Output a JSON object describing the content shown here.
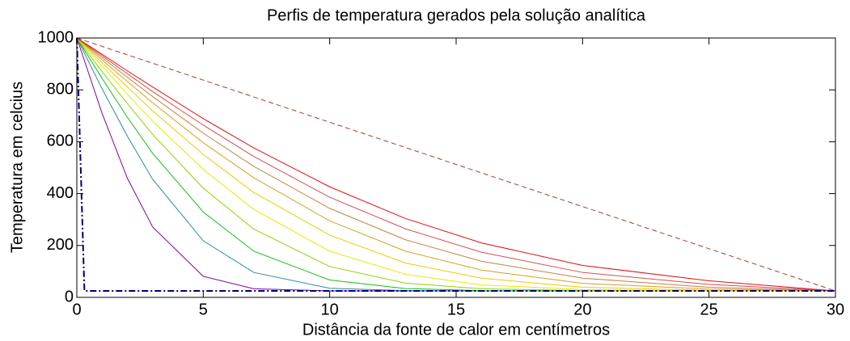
{
  "chart_data": {
    "type": "line",
    "title": "Perfis de temperatura gerados pela solução analítica",
    "xlabel": "Distância da fonte de calor em centímetros",
    "ylabel": "Temperatura em celcius",
    "xlim": [
      0,
      30
    ],
    "ylim": [
      0,
      1000
    ],
    "xticks": [
      0,
      5,
      10,
      15,
      20,
      25,
      30
    ],
    "yticks": [
      0,
      200,
      400,
      600,
      800,
      1000
    ],
    "grid": false,
    "x": [
      0,
      1,
      2,
      3,
      5,
      7,
      10,
      13,
      16,
      20,
      25,
      30
    ],
    "series": [
      {
        "color": "#8000a0",
        "values": [
          1000,
          709,
          459,
          271,
          81,
          33,
          25,
          25,
          25,
          25,
          25,
          25
        ]
      },
      {
        "color": "#2a8aa0",
        "values": [
          1000,
          804,
          621,
          455,
          218,
          96,
          35,
          26,
          25,
          25,
          25,
          25
        ]
      },
      {
        "color": "#10c010",
        "values": [
          1000,
          844,
          694,
          555,
          329,
          178,
          67,
          34,
          26,
          25,
          25,
          25
        ]
      },
      {
        "color": "#90d000",
        "values": [
          1000,
          870,
          747,
          628,
          421,
          263,
          119,
          55,
          33,
          26,
          25,
          25
        ]
      },
      {
        "color": "#e8e800",
        "values": [
          1000,
          891,
          783,
          679,
          493,
          339,
          178,
          89,
          48,
          30,
          25,
          25
        ]
      },
      {
        "color": "#f0c800",
        "values": [
          1000,
          904,
          811,
          719,
          551,
          404,
          240,
          132,
          74,
          39,
          27,
          25
        ]
      },
      {
        "color": "#d8a020",
        "values": [
          1000,
          915,
          832,
          750,
          596,
          461,
          295,
          178,
          105,
          54,
          32,
          25
        ]
      },
      {
        "color": "#c88040",
        "values": [
          1000,
          924,
          848,
          774,
          633,
          505,
          343,
          222,
          139,
          74,
          39,
          25
        ]
      },
      {
        "color": "#d05050",
        "values": [
          1000,
          931,
          862,
          793,
          664,
          543,
          386,
          264,
          174,
          96,
          50,
          25
        ]
      },
      {
        "color": "#e01010",
        "values": [
          1000,
          937,
          873,
          811,
          689,
          576,
          426,
          304,
          210,
          123,
          64,
          25
        ]
      },
      {
        "color": "#a04030",
        "dash": "dashed",
        "x": [
          0,
          30
        ],
        "values": [
          1000,
          25
        ]
      },
      {
        "color": "#000070",
        "dash": "dashdot",
        "x": [
          0,
          0.3,
          30
        ],
        "values": [
          1000,
          25,
          25
        ]
      }
    ]
  }
}
